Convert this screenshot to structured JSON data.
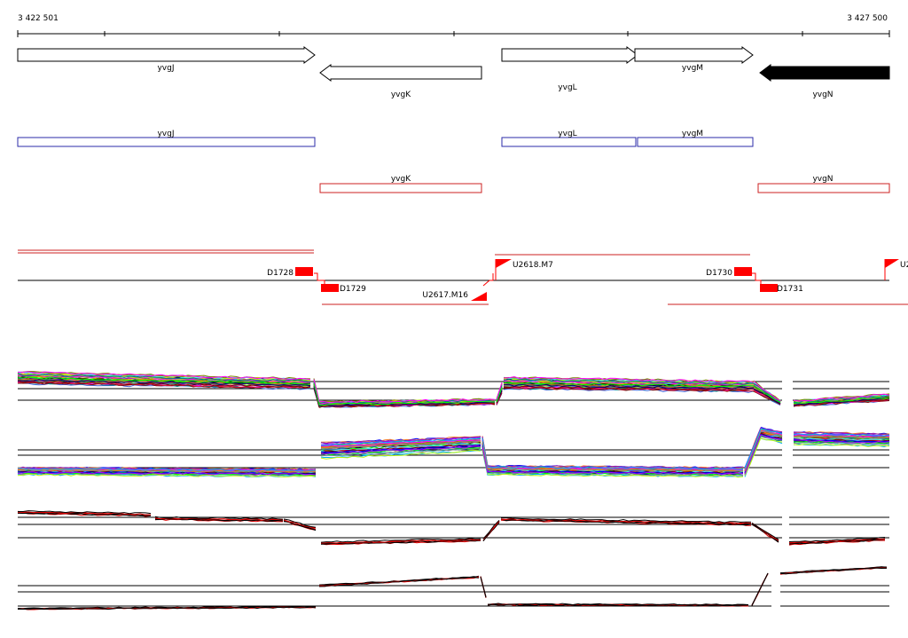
{
  "ruler": {
    "start_label": "3 422 501",
    "end_label": "3 427 500"
  },
  "genes": [
    {
      "name": "yvgJ",
      "strand": "+",
      "filled": false
    },
    {
      "name": "yvgK",
      "strand": "-",
      "filled": false
    },
    {
      "name": "yvgL",
      "strand": "+",
      "filled": false
    },
    {
      "name": "yvgM",
      "strand": "+",
      "filled": false
    },
    {
      "name": "yvgN",
      "strand": "-",
      "filled": true
    }
  ],
  "segments_plus": [
    {
      "name": "yvgJ"
    },
    {
      "name": "yvgL"
    },
    {
      "name": "yvgM"
    }
  ],
  "segments_minus": [
    {
      "name": "yvgK"
    },
    {
      "name": "yvgN"
    }
  ],
  "markers": [
    {
      "label": "D1728"
    },
    {
      "label": "D1729"
    },
    {
      "label": "U2617.M16"
    },
    {
      "label": "U2618.M7"
    },
    {
      "label": "D1730"
    },
    {
      "label": "D1731"
    },
    {
      "label": "U2"
    }
  ],
  "colors": {
    "plus_segment": "#2b2ba8",
    "minus_segment": "#cc2222",
    "marker": "#ff0000",
    "filled_gene": "#000000"
  }
}
